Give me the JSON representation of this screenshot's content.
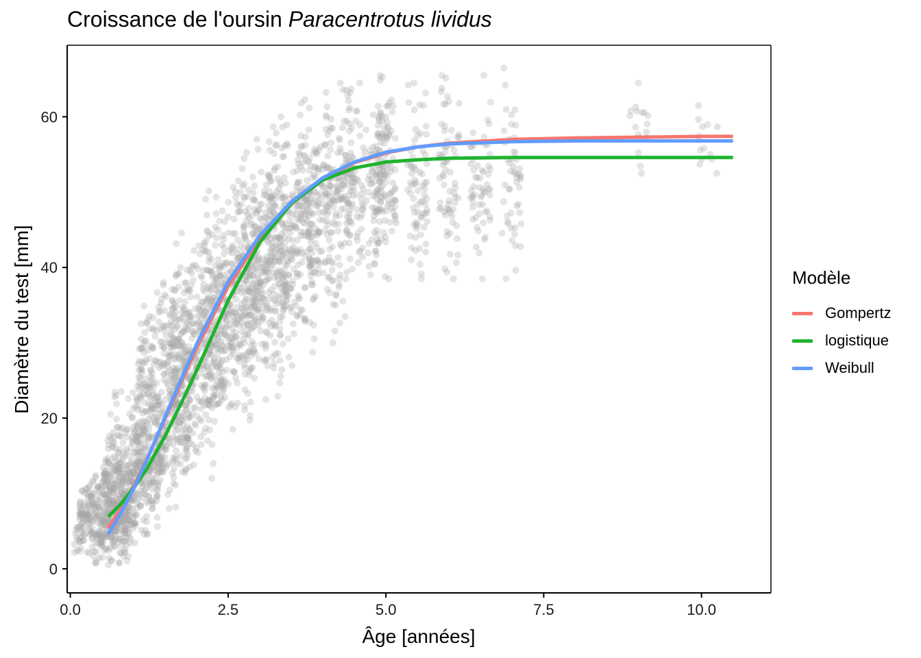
{
  "title": {
    "main": "Croissance de l'oursin",
    "species": "Paracentrotus lividus"
  },
  "chart_data": {
    "type": "scatter",
    "title": "Croissance de l'oursin Paracentrotus lividus",
    "xlabel": "Âge  [années]",
    "ylabel": "Diamètre du test  [mm]",
    "xlim": [
      -0.05,
      11.1
    ],
    "ylim": [
      -3.2,
      69.5
    ],
    "xticks": [
      0.0,
      2.5,
      5.0,
      7.5,
      10.0
    ],
    "xtick_labels": [
      "0.0",
      "2.5",
      "5.0",
      "7.5",
      "10.0"
    ],
    "yticks": [
      0,
      20,
      40,
      60
    ],
    "ytick_labels": [
      "0",
      "20",
      "40",
      "60"
    ],
    "grid": false,
    "legend_position": "right",
    "point_color": "#a6a6a6",
    "legend": {
      "title": "Modèle",
      "items": [
        {
          "label": "Gompertz",
          "color": "#F8766D"
        },
        {
          "label": "logistique",
          "color": "#1FB32E"
        },
        {
          "label": "Weibull",
          "color": "#619CFF"
        }
      ]
    },
    "scatter_groups": [
      {
        "age": 0.58,
        "y_min": 0.5,
        "y_max": 13.5,
        "n": 420
      },
      {
        "age": 1.0,
        "y_min": 1.5,
        "y_max": 24.0,
        "n": 380
      },
      {
        "age": 1.5,
        "y_min": 8.0,
        "y_max": 38.0,
        "n": 380
      },
      {
        "age": 2.0,
        "y_min": 12.0,
        "y_max": 45.0,
        "n": 360
      },
      {
        "age": 2.5,
        "y_min": 17.0,
        "y_max": 52.0,
        "n": 340
      },
      {
        "age": 3.0,
        "y_min": 22.0,
        "y_max": 57.0,
        "n": 320
      },
      {
        "age": 3.5,
        "y_min": 27.0,
        "y_max": 60.0,
        "n": 280
      },
      {
        "age": 4.0,
        "y_min": 30.0,
        "y_max": 64.5,
        "n": 240
      },
      {
        "age": 4.5,
        "y_min": 38.5,
        "y_max": 64.5,
        "n": 200
      },
      {
        "age": 5.0,
        "y_min": 38.5,
        "y_max": 65.5,
        "n": 110
      },
      {
        "age": 5.5,
        "y_min": 38.5,
        "y_max": 64.5,
        "n": 75
      },
      {
        "age": 6.0,
        "y_min": 38.5,
        "y_max": 65.5,
        "n": 70
      },
      {
        "age": 6.5,
        "y_min": 38.5,
        "y_max": 65.5,
        "n": 60
      },
      {
        "age": 7.0,
        "y_min": 38.5,
        "y_max": 66.5,
        "n": 50
      },
      {
        "age": 9.0,
        "y_min": 52.5,
        "y_max": 64.5,
        "n": 18
      },
      {
        "age": 10.1,
        "y_min": 52.5,
        "y_max": 61.5,
        "n": 14
      }
    ],
    "series": [
      {
        "name": "Gompertz",
        "color": "#F8766D",
        "x": [
          0.6,
          0.8,
          1.0,
          1.2,
          1.5,
          1.8,
          2.0,
          2.5,
          3.0,
          3.5,
          4.0,
          4.5,
          5.0,
          5.5,
          6.0,
          7.0,
          8.0,
          9.0,
          10.0,
          10.5
        ],
        "y": [
          5.4,
          7.9,
          10.9,
          14.3,
          19.9,
          25.6,
          29.3,
          37.5,
          43.9,
          48.5,
          51.8,
          53.9,
          55.2,
          56.0,
          56.5,
          57.0,
          57.2,
          57.3,
          57.4,
          57.4
        ]
      },
      {
        "name": "logistique",
        "color": "#1FB32E",
        "x": [
          0.6,
          0.8,
          1.0,
          1.2,
          1.5,
          1.8,
          2.0,
          2.5,
          3.0,
          3.5,
          4.0,
          4.5,
          5.0,
          5.5,
          6.0,
          7.0,
          8.0,
          9.0,
          10.0,
          10.5
        ],
        "y": [
          6.9,
          8.6,
          10.7,
          13.1,
          17.6,
          22.7,
          26.3,
          35.6,
          43.3,
          48.5,
          51.6,
          53.2,
          54.0,
          54.3,
          54.5,
          54.6,
          54.6,
          54.6,
          54.6,
          54.6
        ]
      },
      {
        "name": "Weibull",
        "color": "#619CFF",
        "x": [
          0.6,
          0.8,
          1.0,
          1.2,
          1.5,
          1.8,
          2.0,
          2.5,
          3.0,
          3.5,
          4.0,
          4.5,
          5.0,
          5.5,
          6.0,
          7.0,
          8.0,
          9.0,
          10.0,
          10.5
        ],
        "y": [
          4.6,
          7.4,
          10.6,
          14.2,
          20.1,
          26.0,
          29.8,
          38.1,
          44.2,
          48.7,
          51.9,
          54.0,
          55.3,
          56.0,
          56.4,
          56.7,
          56.8,
          56.8,
          56.8,
          56.8
        ]
      }
    ]
  }
}
